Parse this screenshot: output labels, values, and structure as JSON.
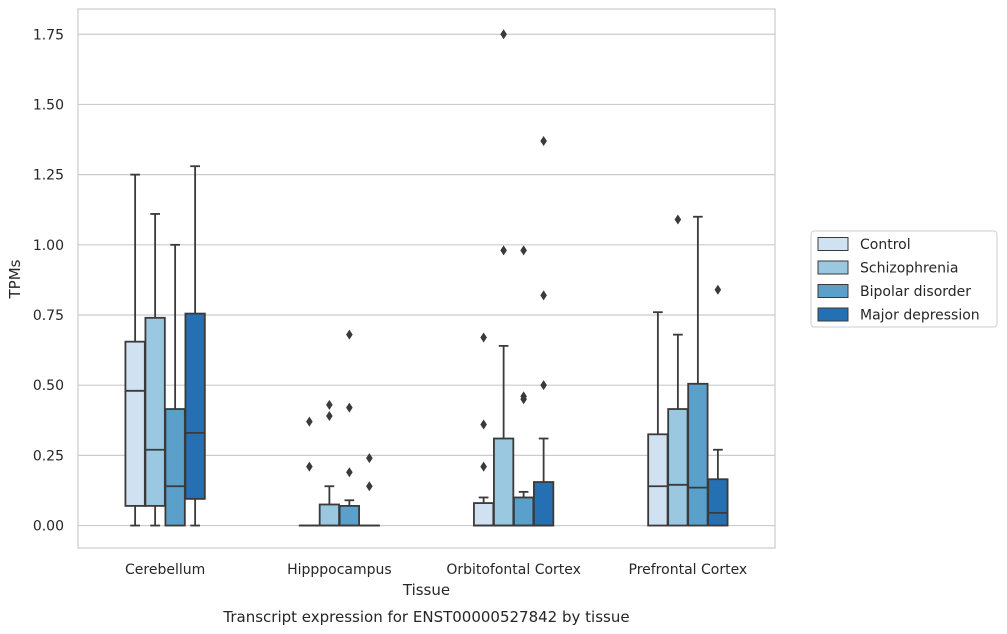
{
  "chart_data": {
    "type": "box",
    "xlabel": "Tissue",
    "ylabel": "TPMs",
    "caption": "Transcript expression for ENST00000527842 by tissue",
    "categories": [
      "Cerebellum",
      "Hipppocampus",
      "Orbitofontal Cortex",
      "Prefrontal Cortex"
    ],
    "ylim": [
      -0.08,
      1.84
    ],
    "yticks": [
      {
        "value": 0.0,
        "label": "0.00"
      },
      {
        "value": 0.25,
        "label": "0.25"
      },
      {
        "value": 0.5,
        "label": "0.50"
      },
      {
        "value": 0.75,
        "label": "0.75"
      },
      {
        "value": 1.0,
        "label": "1.00"
      },
      {
        "value": 1.25,
        "label": "1.25"
      },
      {
        "value": 1.5,
        "label": "1.50"
      },
      {
        "value": 1.75,
        "label": "1.75"
      }
    ],
    "grid": "horizontal",
    "legend_position": "right",
    "series": [
      {
        "name": "Control",
        "color": "#d0e1f2",
        "boxes": [
          {
            "whislo": 0.0,
            "q1": 0.07,
            "med": 0.48,
            "q3": 0.655,
            "whishi": 1.25,
            "fliers": []
          },
          {
            "whislo": 0.0,
            "q1": 0.0,
            "med": 0.0,
            "q3": 0.0,
            "whishi": 0.0,
            "fliers": [
              0.37,
              0.21
            ]
          },
          {
            "whislo": 0.0,
            "q1": 0.0,
            "med": 0.0,
            "q3": 0.08,
            "whishi": 0.1,
            "fliers": [
              0.67,
              0.36,
              0.21
            ]
          },
          {
            "whislo": 0.0,
            "q1": 0.0,
            "med": 0.14,
            "q3": 0.325,
            "whishi": 0.76,
            "fliers": []
          }
        ]
      },
      {
        "name": "Schizophrenia",
        "color": "#9ac8e0",
        "boxes": [
          {
            "whislo": 0.0,
            "q1": 0.07,
            "med": 0.27,
            "q3": 0.74,
            "whishi": 1.11,
            "fliers": []
          },
          {
            "whislo": 0.0,
            "q1": 0.0,
            "med": 0.0,
            "q3": 0.075,
            "whishi": 0.14,
            "fliers": [
              0.43,
              0.39
            ]
          },
          {
            "whislo": 0.0,
            "q1": 0.0,
            "med": 0.0,
            "q3": 0.31,
            "whishi": 0.64,
            "fliers": [
              1.75,
              0.98
            ]
          },
          {
            "whislo": 0.0,
            "q1": 0.0,
            "med": 0.145,
            "q3": 0.415,
            "whishi": 0.68,
            "fliers": [
              1.09
            ]
          }
        ]
      },
      {
        "name": "Bipolar disorder",
        "color": "#5b9fcb",
        "boxes": [
          {
            "whislo": 0.0,
            "q1": 0.0,
            "med": 0.14,
            "q3": 0.415,
            "whishi": 1.0,
            "fliers": []
          },
          {
            "whislo": 0.0,
            "q1": 0.0,
            "med": 0.0,
            "q3": 0.07,
            "whishi": 0.09,
            "fliers": [
              0.68,
              0.42,
              0.19
            ]
          },
          {
            "whislo": 0.0,
            "q1": 0.0,
            "med": 0.0,
            "q3": 0.1,
            "whishi": 0.12,
            "fliers": [
              0.98,
              0.46,
              0.45
            ]
          },
          {
            "whislo": 0.0,
            "q1": 0.0,
            "med": 0.135,
            "q3": 0.505,
            "whishi": 1.1,
            "fliers": []
          }
        ]
      },
      {
        "name": "Major depression",
        "color": "#2470b2",
        "boxes": [
          {
            "whislo": 0.0,
            "q1": 0.095,
            "med": 0.33,
            "q3": 0.755,
            "whishi": 1.28,
            "fliers": []
          },
          {
            "whislo": 0.0,
            "q1": 0.0,
            "med": 0.0,
            "q3": 0.0,
            "whishi": 0.0,
            "fliers": [
              0.24,
              0.14
            ]
          },
          {
            "whislo": 0.0,
            "q1": 0.0,
            "med": 0.0,
            "q3": 0.155,
            "whishi": 0.31,
            "fliers": [
              1.37,
              0.82,
              0.5
            ]
          },
          {
            "whislo": 0.0,
            "q1": 0.0,
            "med": 0.045,
            "q3": 0.165,
            "whishi": 0.27,
            "fliers": [
              0.84
            ]
          }
        ]
      }
    ]
  }
}
